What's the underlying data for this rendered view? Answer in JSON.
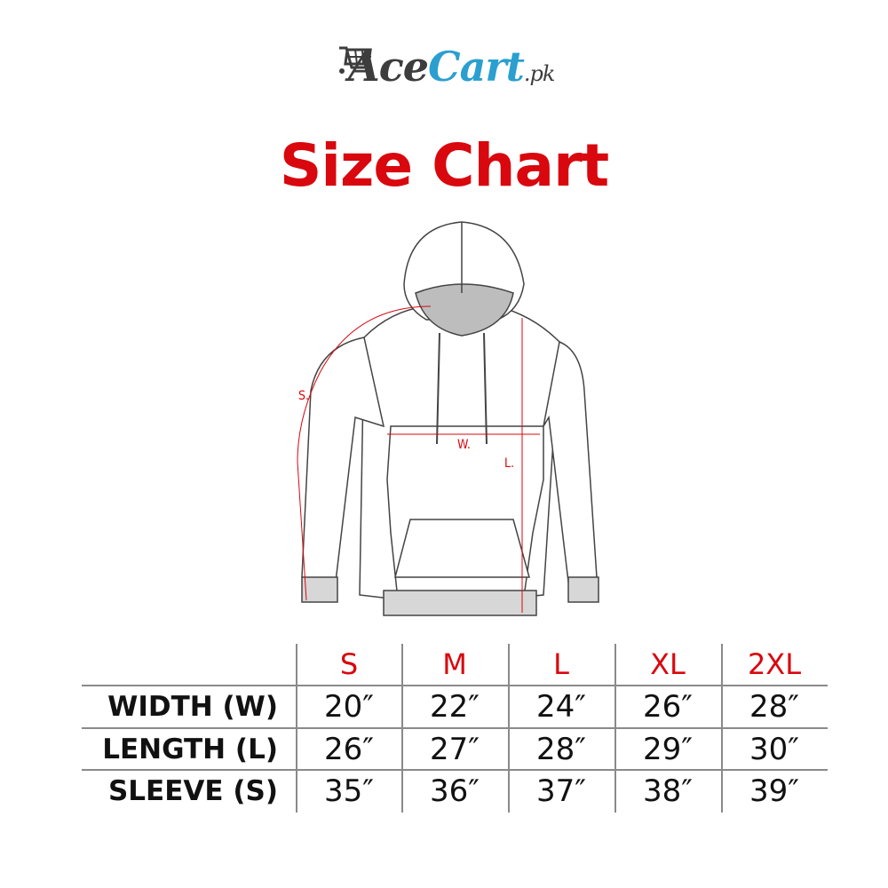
{
  "logo": {
    "brand_dark": "Ace",
    "brand_blue": "Cart",
    "suffix": ".pk",
    "colors": {
      "dark": "#3d3d3d",
      "blue": "#2b9fd0"
    },
    "icon": "shopping-cart-icon"
  },
  "title": "Size Chart",
  "accent_color": "#d9070e",
  "diagram": {
    "labels": {
      "sleeve": "S.",
      "width": "W.",
      "length": "L."
    }
  },
  "table": {
    "sizes": [
      "S",
      "M",
      "L",
      "XL",
      "2XL"
    ],
    "rows": [
      {
        "label": "WIDTH (W)",
        "values": [
          "20″",
          "22″",
          "24″",
          "26″",
          "28″"
        ]
      },
      {
        "label": "LENGTH (L)",
        "values": [
          "26″",
          "27″",
          "28″",
          "29″",
          "30″"
        ]
      },
      {
        "label": "SLEEVE (S)",
        "values": [
          "35″",
          "36″",
          "37″",
          "38″",
          "39″"
        ]
      }
    ]
  }
}
